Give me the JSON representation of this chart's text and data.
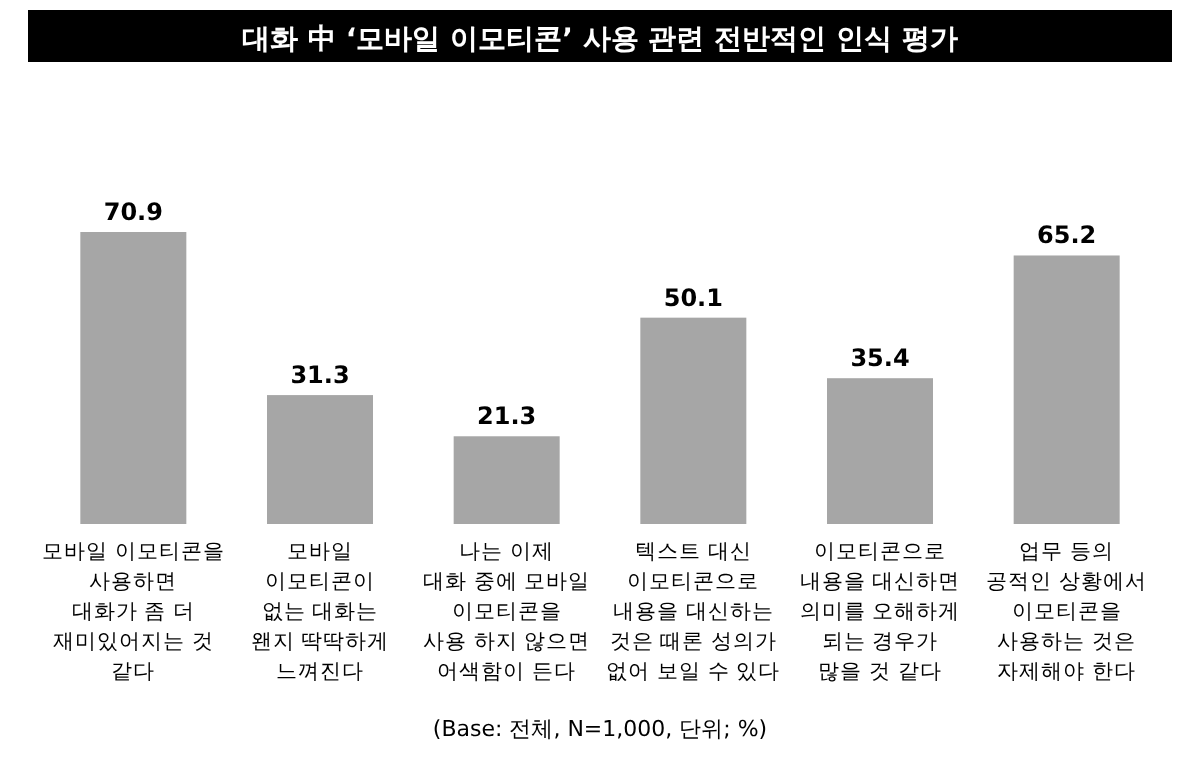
{
  "chart_data": {
    "type": "bar",
    "title": "대화 中 ‘모바일 이모티콘’ 사용 관련 전반적인 인식 평가",
    "categories": [
      "모바일 이모티콘을\n사용하면\n대화가 좀 더\n재미있어지는 것\n같다",
      "모바일\n이모티콘이\n없는 대화는\n왠지 딱딱하게\n느껴진다",
      "나는 이제\n대화 중에 모바일\n이모티콘을\n사용 하지 않으면\n어색함이 든다",
      "텍스트 대신\n이모티콘으로\n내용을 대신하는\n것은 때론 성의가\n없어 보일 수 있다",
      "이모티콘으로\n내용을 대신하면\n의미를 오해하게\n되는 경우가\n많을 것 같다",
      "업무 등의\n공적인 상황에서\n이모티콘을\n사용하는 것은\n자제해야 한다"
    ],
    "values": [
      70.9,
      31.3,
      21.3,
      50.1,
      35.4,
      65.2
    ],
    "color": "#a6a6a6",
    "data_labels": true,
    "annotations": [
      "(Base: 전체, N=1,000, 단위; %)"
    ]
  }
}
